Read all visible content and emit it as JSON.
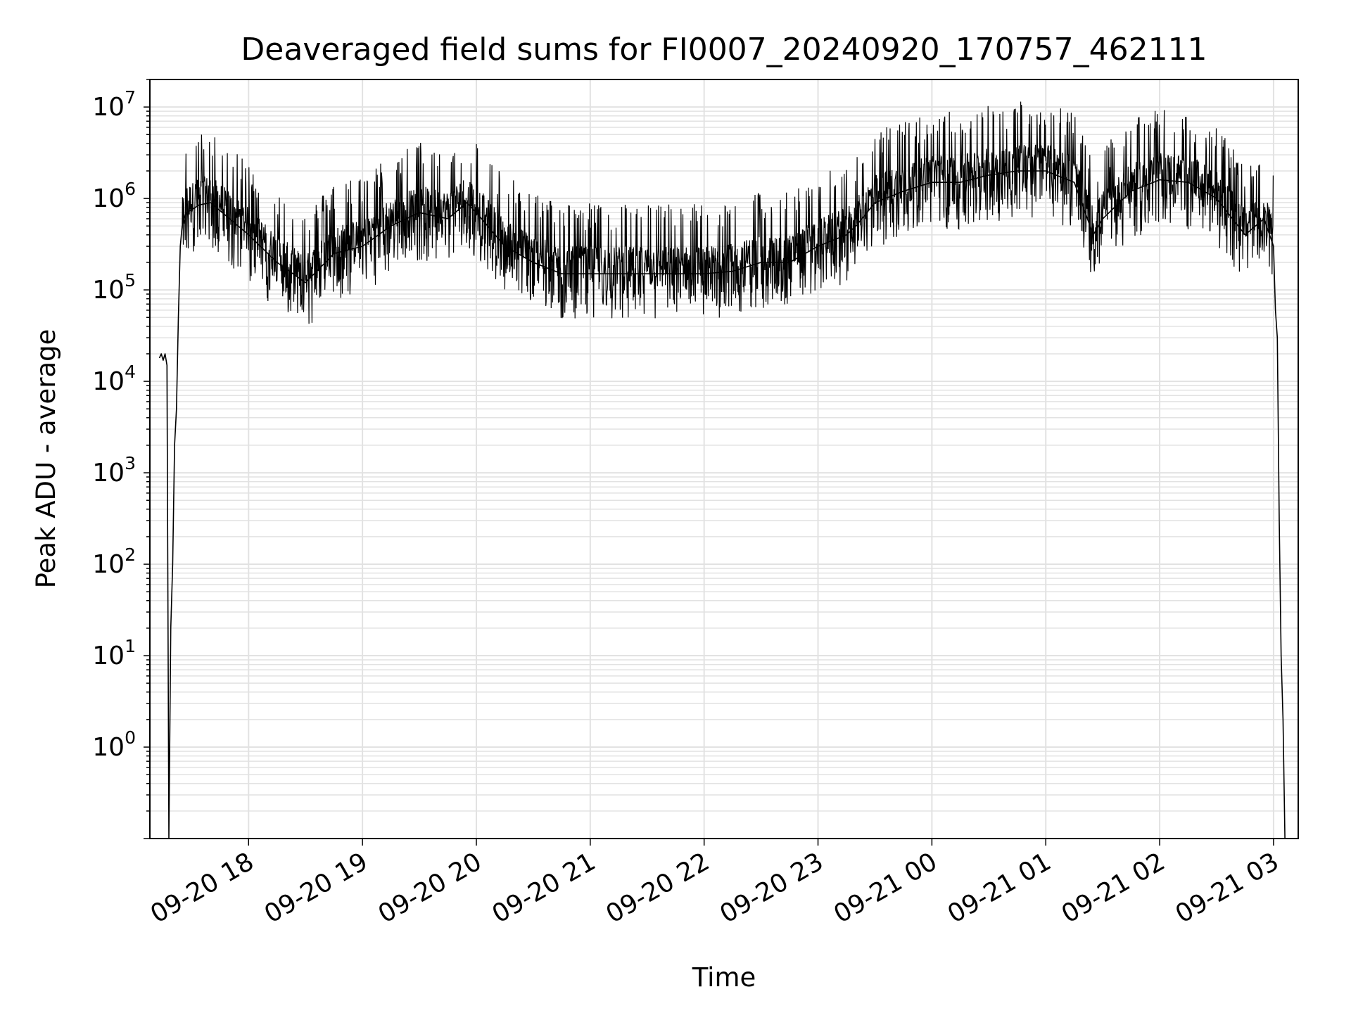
{
  "chart_data": {
    "type": "line",
    "title": "Deaveraged field sums for FI0007_20240920_170757_462111",
    "xlabel": "Time",
    "ylabel": "Peak ADU - average",
    "y_scale": "log",
    "ylim": [
      0.1,
      20000000
    ],
    "xlim": [
      "2024-09-20 17:08",
      "2024-09-21 03:13"
    ],
    "grid": true,
    "x_ticks": [
      {
        "value": "2024-09-20 18:00",
        "label": "09-20 18"
      },
      {
        "value": "2024-09-20 19:00",
        "label": "09-20 19"
      },
      {
        "value": "2024-09-20 20:00",
        "label": "09-20 20"
      },
      {
        "value": "2024-09-20 21:00",
        "label": "09-20 21"
      },
      {
        "value": "2024-09-20 22:00",
        "label": "09-20 22"
      },
      {
        "value": "2024-09-20 23:00",
        "label": "09-20 23"
      },
      {
        "value": "2024-09-21 00:00",
        "label": "09-21 00"
      },
      {
        "value": "2024-09-21 01:00",
        "label": "09-21 01"
      },
      {
        "value": "2024-09-21 02:00",
        "label": "09-21 02"
      },
      {
        "value": "2024-09-21 03:00",
        "label": "09-21 03"
      }
    ],
    "y_ticks": [
      {
        "value": 1,
        "base": "10",
        "exp": "0"
      },
      {
        "value": 10,
        "base": "10",
        "exp": "1"
      },
      {
        "value": 100,
        "base": "10",
        "exp": "2"
      },
      {
        "value": 1000,
        "base": "10",
        "exp": "3"
      },
      {
        "value": 10000,
        "base": "10",
        "exp": "4"
      },
      {
        "value": 100000,
        "base": "10",
        "exp": "5"
      },
      {
        "value": 1000000,
        "base": "10",
        "exp": "6"
      },
      {
        "value": 10000000,
        "base": "10",
        "exp": "7"
      }
    ],
    "series": [
      {
        "color": "#000000",
        "x": [
          "2024-09-20 17:13",
          "2024-09-20 17:14",
          "2024-09-20 17:15",
          "2024-09-20 17:16",
          "2024-09-20 17:17",
          "2024-09-20 17:18",
          "2024-09-20 17:19",
          "2024-09-20 17:20",
          "2024-09-20 17:21",
          "2024-09-20 17:22",
          "2024-09-20 17:23",
          "2024-09-20 17:24",
          "2024-09-20 17:25",
          "2024-09-20 17:27",
          "2024-09-20 17:30",
          "2024-09-20 17:34",
          "2024-09-20 17:40",
          "2024-09-20 17:50",
          "2024-09-20 18:00",
          "2024-09-20 18:15",
          "2024-09-20 18:30",
          "2024-09-20 18:45",
          "2024-09-20 19:00",
          "2024-09-20 19:15",
          "2024-09-20 19:30",
          "2024-09-20 19:45",
          "2024-09-20 19:55",
          "2024-09-20 20:00",
          "2024-09-20 20:15",
          "2024-09-20 20:30",
          "2024-09-20 20:45",
          "2024-09-20 21:00",
          "2024-09-20 21:15",
          "2024-09-20 21:30",
          "2024-09-20 21:45",
          "2024-09-20 22:00",
          "2024-09-20 22:15",
          "2024-09-20 22:30",
          "2024-09-20 22:45",
          "2024-09-20 23:00",
          "2024-09-20 23:15",
          "2024-09-20 23:20",
          "2024-09-20 23:30",
          "2024-09-20 23:45",
          "2024-09-21 00:00",
          "2024-09-21 00:15",
          "2024-09-21 00:30",
          "2024-09-21 00:45",
          "2024-09-21 01:00",
          "2024-09-21 01:15",
          "2024-09-21 01:25",
          "2024-09-21 01:30",
          "2024-09-21 01:45",
          "2024-09-21 02:00",
          "2024-09-21 02:15",
          "2024-09-21 02:30",
          "2024-09-21 02:45",
          "2024-09-21 02:55",
          "2024-09-21 03:00",
          "2024-09-21 03:01",
          "2024-09-21 03:02",
          "2024-09-21 03:03",
          "2024-09-21 03:04",
          "2024-09-21 03:05",
          "2024-09-21 03:06"
        ],
        "y": [
          18000,
          20000,
          17000,
          20000,
          15000,
          0.1,
          20,
          100,
          2000,
          5000,
          50000,
          300000,
          500000,
          700000,
          750000,
          850000,
          900000,
          600000,
          400000,
          200000,
          120000,
          250000,
          300000,
          500000,
          700000,
          600000,
          900000,
          700000,
          300000,
          200000,
          150000,
          150000,
          150000,
          150000,
          150000,
          150000,
          160000,
          200000,
          200000,
          300000,
          400000,
          500000,
          900000,
          1200000,
          1500000,
          1500000,
          1800000,
          2000000,
          2000000,
          1500000,
          400000,
          600000,
          1200000,
          1600000,
          1500000,
          1000000,
          400000,
          600000,
          300000,
          60000,
          30000,
          300,
          10,
          2,
          0.1
        ]
      }
    ]
  }
}
